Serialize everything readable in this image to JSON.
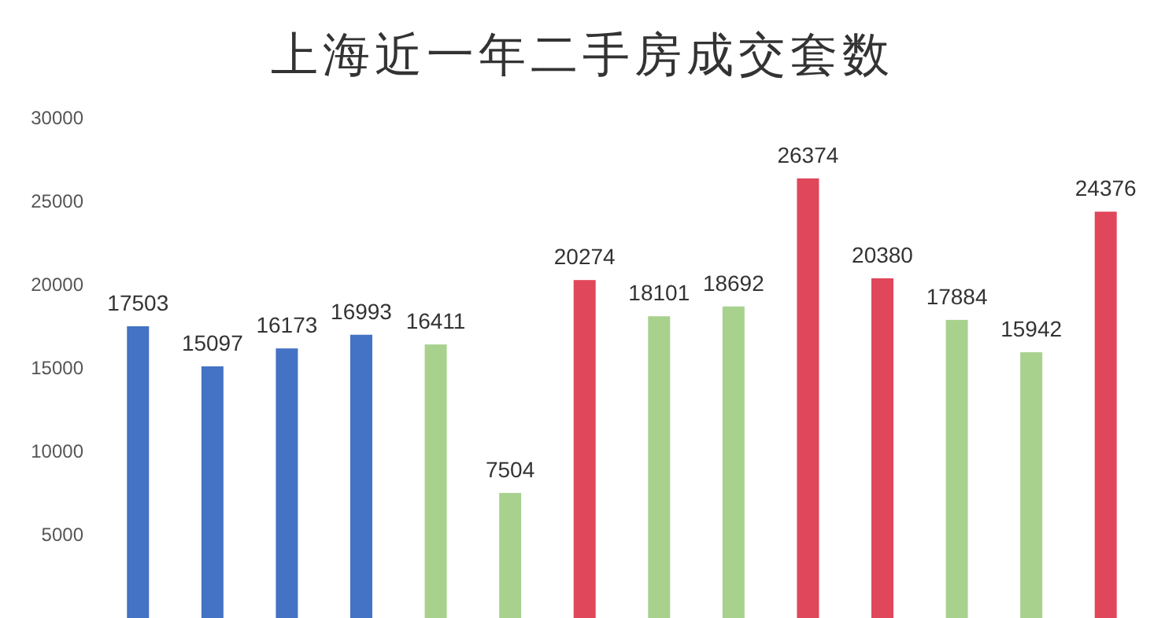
{
  "chart_data": {
    "type": "bar",
    "title": "上海近一年二手房成交套数",
    "categories": [
      null,
      null,
      null,
      null,
      null,
      null,
      null,
      null,
      null,
      null,
      null,
      null,
      null,
      null
    ],
    "values": [
      17503,
      15097,
      16173,
      16993,
      16411,
      7504,
      20274,
      18101,
      18692,
      26374,
      20380,
      17884,
      15942,
      24376
    ],
    "colors": [
      "#4472c4",
      "#4472c4",
      "#4472c4",
      "#4472c4",
      "#a9d18e",
      "#a9d18e",
      "#e0475b",
      "#a9d18e",
      "#a9d18e",
      "#e0475b",
      "#e0475b",
      "#a9d18e",
      "#a9d18e",
      "#e0475b"
    ],
    "ylim": [
      0,
      30000
    ],
    "yticks": [
      5000,
      10000,
      15000,
      20000,
      25000,
      30000
    ],
    "data_labels": true
  }
}
